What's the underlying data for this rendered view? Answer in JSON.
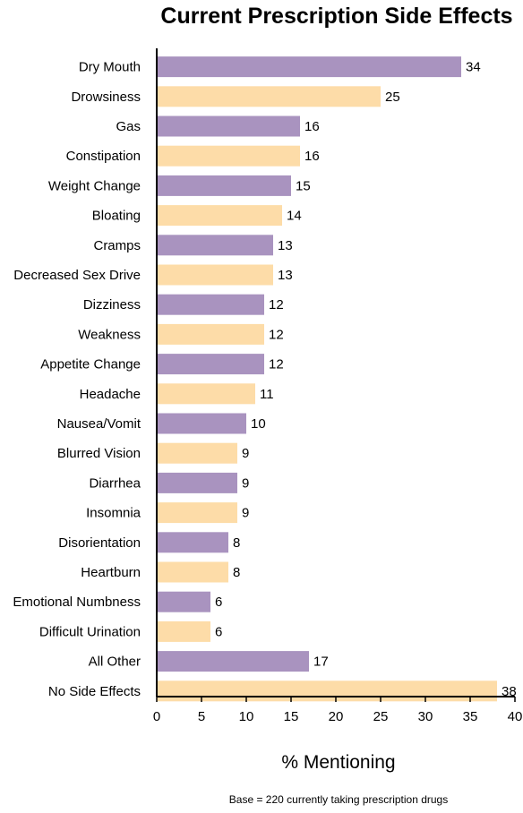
{
  "chart_data": {
    "type": "bar",
    "orientation": "horizontal",
    "title": "Current Prescription Side Effects",
    "xlabel": "% Mentioning",
    "ylabel": "",
    "xlim": [
      0,
      40
    ],
    "xticks": [
      0,
      5,
      10,
      15,
      20,
      25,
      30,
      35,
      40
    ],
    "grid": false,
    "categories": [
      "Dry Mouth",
      "Drowsiness",
      "Gas",
      "Constipation",
      "Weight Change",
      "Bloating",
      "Cramps",
      "Decreased Sex Drive",
      "Dizziness",
      "Weakness",
      "Appetite Change",
      "Headache",
      "Nausea/Vomit",
      "Blurred Vision",
      "Diarrhea",
      "Insomnia",
      "Disorientation",
      "Heartburn",
      "Emotional Numbness",
      "Difficult Urination",
      "All Other",
      "No Side Effects"
    ],
    "values": [
      34,
      25,
      16,
      16,
      15,
      14,
      13,
      13,
      12,
      12,
      12,
      11,
      10,
      9,
      9,
      9,
      8,
      8,
      6,
      6,
      17,
      38
    ],
    "colors": [
      "#a993bf",
      "#fddca8"
    ],
    "note": "Base = 220 currently taking prescription drugs"
  }
}
